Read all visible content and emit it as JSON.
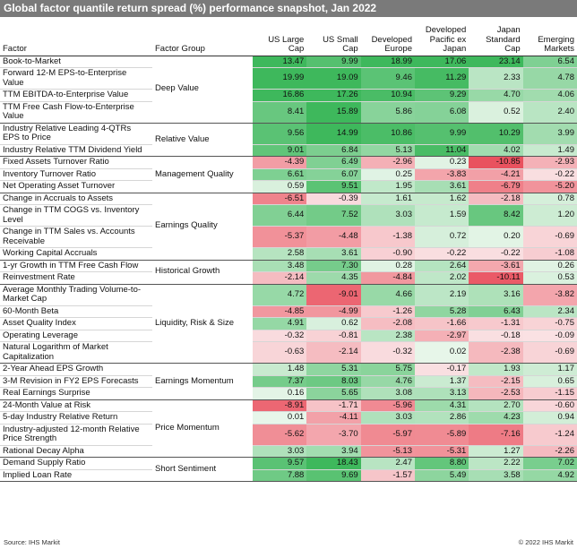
{
  "title": "Global factor quantile return spread (%) performance snapshot, Jan 2022",
  "columns": [
    "Factor",
    "Factor Group",
    "US Large Cap",
    "US Small Cap",
    "Developed Europe",
    "Developed Pacific ex Japan",
    "Japan Standard Cap",
    "Emerging Markets"
  ],
  "groups": [
    {
      "name": "Deep Value",
      "rows": [
        {
          "factor": "Book-to-Market",
          "values": [
            "13.47",
            "9.99",
            "18.99",
            "17.06",
            "23.14",
            "6.54"
          ]
        },
        {
          "factor": "Forward 12-M EPS-to-Enterprise Value",
          "values": [
            "19.99",
            "19.09",
            "9.46",
            "11.29",
            "2.33",
            "4.78"
          ]
        },
        {
          "factor": "TTM EBITDA-to-Enterprise Value",
          "values": [
            "16.86",
            "17.26",
            "10.94",
            "9.29",
            "4.70",
            "4.06"
          ]
        },
        {
          "factor": "TTM Free Cash Flow-to-Enterprise Value",
          "values": [
            "8.41",
            "15.89",
            "5.86",
            "6.08",
            "0.52",
            "2.40"
          ]
        }
      ]
    },
    {
      "name": "Relative Value",
      "rows": [
        {
          "factor": "Industry Relative Leading 4-QTRs EPS to Price",
          "values": [
            "9.56",
            "14.99",
            "10.86",
            "9.99",
            "10.29",
            "3.99"
          ]
        },
        {
          "factor": "Industry Relative TTM Dividend Yield",
          "values": [
            "9.01",
            "6.84",
            "5.13",
            "11.04",
            "4.02",
            "1.49"
          ]
        }
      ]
    },
    {
      "name": "Management Quality",
      "rows": [
        {
          "factor": "Fixed Assets Turnover Ratio",
          "values": [
            "-4.39",
            "6.49",
            "-2.96",
            "0.23",
            "-10.85",
            "-2.93"
          ]
        },
        {
          "factor": "Inventory Turnover Ratio",
          "values": [
            "6.61",
            "6.07",
            "0.25",
            "-3.83",
            "-4.21",
            "-0.22"
          ]
        },
        {
          "factor": "Net Operating Asset Turnover",
          "values": [
            "0.59",
            "9.51",
            "1.95",
            "3.61",
            "-6.79",
            "-5.20"
          ]
        }
      ]
    },
    {
      "name": "Earnings Quality",
      "rows": [
        {
          "factor": "Change in Accruals to Assets",
          "values": [
            "-6.51",
            "-0.39",
            "1.61",
            "1.62",
            "-2.18",
            "0.78"
          ]
        },
        {
          "factor": "Change in TTM COGS vs. Inventory Level",
          "values": [
            "6.44",
            "7.52",
            "3.03",
            "1.59",
            "8.42",
            "1.20"
          ]
        },
        {
          "factor": "Change in TTM Sales vs. Accounts Receivable",
          "values": [
            "-5.37",
            "-4.48",
            "-1.38",
            "0.72",
            "0.20",
            "-0.69"
          ]
        },
        {
          "factor": "Working Capital Accruals",
          "values": [
            "2.58",
            "3.61",
            "-0.90",
            "-0.22",
            "-0.22",
            "-1.08"
          ]
        }
      ]
    },
    {
      "name": "Historical Growth",
      "rows": [
        {
          "factor": "1-yr Growth in TTM Free Cash Flow",
          "values": [
            "3.48",
            "7.30",
            "0.28",
            "2.64",
            "-3.61",
            "0.26"
          ]
        },
        {
          "factor": "Reinvestment Rate",
          "values": [
            "-2.14",
            "4.35",
            "-4.84",
            "2.02",
            "-10.11",
            "0.53"
          ]
        }
      ]
    },
    {
      "name": "Liquidity, Risk & Size",
      "rows": [
        {
          "factor": "Average Monthly Trading Volume-to-Market Cap",
          "values": [
            "4.72",
            "-9.01",
            "4.66",
            "2.19",
            "3.16",
            "-3.82"
          ]
        },
        {
          "factor": "60-Month Beta",
          "values": [
            "-4.85",
            "-4.99",
            "-1.26",
            "5.28",
            "6.43",
            "2.34"
          ]
        },
        {
          "factor": "Asset Quality Index",
          "values": [
            "4.91",
            "0.62",
            "-2.08",
            "-1.66",
            "-1.31",
            "-0.75"
          ]
        },
        {
          "factor": "Operating Leverage",
          "values": [
            "-0.32",
            "-0.81",
            "2.38",
            "-2.97",
            "-0.18",
            "-0.09"
          ]
        },
        {
          "factor": "Natural Logarithm of Market Capitalization",
          "values": [
            "-0.63",
            "-2.14",
            "-0.32",
            "0.02",
            "-2.38",
            "-0.69"
          ]
        }
      ]
    },
    {
      "name": "Earnings Momentum",
      "rows": [
        {
          "factor": "2-Year Ahead EPS Growth",
          "values": [
            "1.48",
            "5.31",
            "5.75",
            "-0.17",
            "1.93",
            "1.17"
          ]
        },
        {
          "factor": "3-M Revision in FY2 EPS Forecasts",
          "values": [
            "7.37",
            "8.03",
            "4.76",
            "1.37",
            "-2.15",
            "0.65"
          ]
        },
        {
          "factor": "Real Earnings Surprise",
          "values": [
            "0.16",
            "5.65",
            "3.08",
            "3.13",
            "-2.53",
            "-1.15"
          ]
        }
      ]
    },
    {
      "name": "Price Momentum",
      "rows": [
        {
          "factor": "24-Month Value at Risk",
          "values": [
            "-8.91",
            "-1.71",
            "-5.96",
            "4.31",
            "2.70",
            "-0.60"
          ]
        },
        {
          "factor": "5-day Industry Relative Return",
          "values": [
            "0.01",
            "-4.11",
            "3.03",
            "2.86",
            "4.23",
            "0.94"
          ]
        },
        {
          "factor": "Industry-adjusted 12-month Relative Price Strength",
          "values": [
            "-5.62",
            "-3.70",
            "-5.97",
            "-5.89",
            "-7.16",
            "-1.24"
          ]
        },
        {
          "factor": "Rational Decay Alpha",
          "values": [
            "3.03",
            "3.94",
            "-5.13",
            "-5.31",
            "1.27",
            "-2.26"
          ]
        }
      ]
    },
    {
      "name": "Short Sentiment",
      "rows": [
        {
          "factor": "Demand Supply Ratio",
          "values": [
            "9.57",
            "18.43",
            "2.47",
            "8.80",
            "2.22",
            "7.02"
          ]
        },
        {
          "factor": "Implied Loan Rate",
          "values": [
            "7.88",
            "9.69",
            "-1.57",
            "5.49",
            "3.58",
            "4.92"
          ]
        }
      ]
    }
  ],
  "source": "Source: IHS Markit",
  "copyright": "© 2022 IHS Markit"
}
